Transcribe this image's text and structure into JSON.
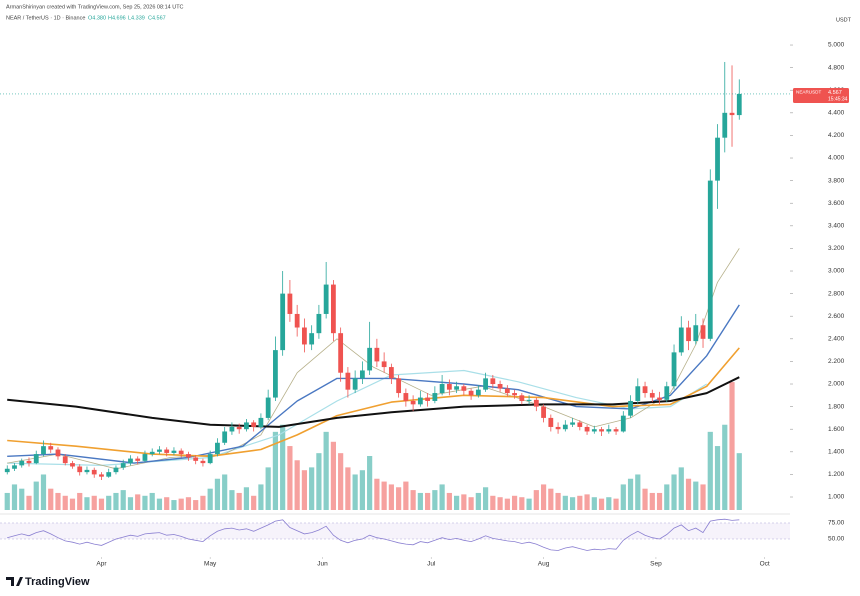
{
  "chart_data": {
    "type": "candlestick",
    "credit": "ArmanShirinyan created with TradingView.com, Sep 25, 2026 08:14 UTC",
    "title": "NEAR / TetherUS · 1D · Binance",
    "header_ohlc": [
      "O4.380",
      "H4.696",
      "L4.339",
      "C4.567"
    ],
    "y_unit": "USDT",
    "brand": "TradingView",
    "up_color": "#26a69a",
    "down_color": "#ef5350",
    "grid": false,
    "xlim": [
      "2026-03-04",
      "2026-10-08"
    ],
    "xticks": [
      {
        "value": "2026-04-01",
        "label": "Apr"
      },
      {
        "value": "2026-05-01",
        "label": "May"
      },
      {
        "value": "2026-06-01",
        "label": "Jun"
      },
      {
        "value": "2026-07-01",
        "label": "Jul"
      },
      {
        "value": "2026-08-01",
        "label": "Aug"
      },
      {
        "value": "2026-09-01",
        "label": "Sep"
      },
      {
        "value": "2026-10-01",
        "label": "Oct"
      }
    ],
    "ylim": [
      0.885,
      5.133
    ],
    "yticks": [
      {
        "value": 1,
        "label": "1.000"
      },
      {
        "value": 1.2,
        "label": "1.200"
      },
      {
        "value": 1.4,
        "label": "1.400"
      },
      {
        "value": 1.6,
        "label": "1.600"
      },
      {
        "value": 1.8,
        "label": "1.800"
      },
      {
        "value": 2,
        "label": "2.000"
      },
      {
        "value": 2.2,
        "label": "2.200"
      },
      {
        "value": 2.4,
        "label": "2.400"
      },
      {
        "value": 2.6,
        "label": "2.600"
      },
      {
        "value": 2.8,
        "label": "2.800"
      },
      {
        "value": 3,
        "label": "3.000"
      },
      {
        "value": 3.2,
        "label": "3.200"
      },
      {
        "value": 3.4,
        "label": "3.400"
      },
      {
        "value": 3.6,
        "label": "3.600"
      },
      {
        "value": 3.8,
        "label": "3.800"
      },
      {
        "value": 4,
        "label": "4.000"
      },
      {
        "value": 4.2,
        "label": "4.200"
      },
      {
        "value": 4.4,
        "label": "4.400"
      },
      {
        "value": 4.6,
        "label": "4.600"
      },
      {
        "value": 4.8,
        "label": "4.800"
      },
      {
        "value": 5,
        "label": "5.000"
      }
    ],
    "price_label": {
      "symbol": "NEARUSDT",
      "value": 4.567,
      "label": "4.567",
      "countdown": "15:45:34"
    },
    "x": [
      "2026-03-06",
      "2026-03-08",
      "2026-03-10",
      "2026-03-12",
      "2026-03-14",
      "2026-03-16",
      "2026-03-18",
      "2026-03-20",
      "2026-03-22",
      "2026-03-24",
      "2026-03-26",
      "2026-03-28",
      "2026-03-30",
      "2026-04-01",
      "2026-04-03",
      "2026-04-05",
      "2026-04-07",
      "2026-04-09",
      "2026-04-11",
      "2026-04-13",
      "2026-04-15",
      "2026-04-17",
      "2026-04-19",
      "2026-04-21",
      "2026-04-23",
      "2026-04-25",
      "2026-04-27",
      "2026-04-29",
      "2026-05-01",
      "2026-05-03",
      "2026-05-05",
      "2026-05-07",
      "2026-05-09",
      "2026-05-11",
      "2026-05-13",
      "2026-05-15",
      "2026-05-17",
      "2026-05-19",
      "2026-05-21",
      "2026-05-23",
      "2026-05-25",
      "2026-05-27",
      "2026-05-29",
      "2026-05-31",
      "2026-06-02",
      "2026-06-04",
      "2026-06-06",
      "2026-06-08",
      "2026-06-10",
      "2026-06-12",
      "2026-06-14",
      "2026-06-16",
      "2026-06-18",
      "2026-06-20",
      "2026-06-22",
      "2026-06-24",
      "2026-06-26",
      "2026-06-28",
      "2026-06-30",
      "2026-07-02",
      "2026-07-04",
      "2026-07-06",
      "2026-07-08",
      "2026-07-10",
      "2026-07-12",
      "2026-07-14",
      "2026-07-16",
      "2026-07-18",
      "2026-07-20",
      "2026-07-22",
      "2026-07-24",
      "2026-07-26",
      "2026-07-28",
      "2026-07-30",
      "2026-08-01",
      "2026-08-03",
      "2026-08-05",
      "2026-08-07",
      "2026-08-09",
      "2026-08-11",
      "2026-08-13",
      "2026-08-15",
      "2026-08-17",
      "2026-08-19",
      "2026-08-21",
      "2026-08-23",
      "2026-08-25",
      "2026-08-27",
      "2026-08-29",
      "2026-08-31",
      "2026-09-02",
      "2026-09-04",
      "2026-09-06",
      "2026-09-08",
      "2026-09-10",
      "2026-09-12",
      "2026-09-14",
      "2026-09-16",
      "2026-09-18",
      "2026-09-20",
      "2026-09-22",
      "2026-09-24"
    ],
    "ohlc": [
      [
        1.22,
        1.28,
        1.2,
        1.25
      ],
      [
        1.25,
        1.3,
        1.23,
        1.28
      ],
      [
        1.28,
        1.34,
        1.26,
        1.32
      ],
      [
        1.32,
        1.35,
        1.27,
        1.3
      ],
      [
        1.3,
        1.41,
        1.29,
        1.38
      ],
      [
        1.38,
        1.5,
        1.36,
        1.45
      ],
      [
        1.45,
        1.48,
        1.39,
        1.42
      ],
      [
        1.42,
        1.44,
        1.33,
        1.36
      ],
      [
        1.36,
        1.38,
        1.28,
        1.3
      ],
      [
        1.3,
        1.32,
        1.25,
        1.27
      ],
      [
        1.27,
        1.29,
        1.19,
        1.22
      ],
      [
        1.22,
        1.27,
        1.2,
        1.24
      ],
      [
        1.24,
        1.26,
        1.17,
        1.2
      ],
      [
        1.2,
        1.22,
        1.15,
        1.18
      ],
      [
        1.18,
        1.25,
        1.17,
        1.22
      ],
      [
        1.22,
        1.28,
        1.2,
        1.26
      ],
      [
        1.26,
        1.33,
        1.24,
        1.3
      ],
      [
        1.3,
        1.37,
        1.28,
        1.34
      ],
      [
        1.34,
        1.36,
        1.29,
        1.32
      ],
      [
        1.32,
        1.41,
        1.31,
        1.38
      ],
      [
        1.38,
        1.43,
        1.36,
        1.4
      ],
      [
        1.4,
        1.45,
        1.38,
        1.42
      ],
      [
        1.42,
        1.44,
        1.36,
        1.39
      ],
      [
        1.39,
        1.44,
        1.37,
        1.41
      ],
      [
        1.41,
        1.43,
        1.35,
        1.38
      ],
      [
        1.38,
        1.4,
        1.32,
        1.35
      ],
      [
        1.35,
        1.37,
        1.29,
        1.32
      ],
      [
        1.32,
        1.34,
        1.27,
        1.3
      ],
      [
        1.3,
        1.41,
        1.29,
        1.38
      ],
      [
        1.38,
        1.52,
        1.36,
        1.48
      ],
      [
        1.48,
        1.62,
        1.46,
        1.58
      ],
      [
        1.58,
        1.66,
        1.55,
        1.62
      ],
      [
        1.62,
        1.65,
        1.56,
        1.6
      ],
      [
        1.6,
        1.69,
        1.58,
        1.66
      ],
      [
        1.66,
        1.68,
        1.58,
        1.62
      ],
      [
        1.62,
        1.74,
        1.6,
        1.7
      ],
      [
        1.7,
        1.95,
        1.68,
        1.88
      ],
      [
        1.88,
        2.42,
        1.85,
        2.3
      ],
      [
        2.3,
        3.0,
        2.25,
        2.8
      ],
      [
        2.8,
        2.92,
        2.55,
        2.62
      ],
      [
        2.62,
        2.7,
        2.42,
        2.5
      ],
      [
        2.5,
        2.58,
        2.28,
        2.35
      ],
      [
        2.35,
        2.52,
        2.3,
        2.45
      ],
      [
        2.45,
        2.7,
        2.4,
        2.62
      ],
      [
        2.62,
        3.08,
        2.58,
        2.88
      ],
      [
        2.88,
        2.92,
        2.38,
        2.45
      ],
      [
        2.45,
        2.5,
        2.02,
        2.1
      ],
      [
        2.1,
        2.15,
        1.88,
        1.95
      ],
      [
        1.95,
        2.12,
        1.92,
        2.05
      ],
      [
        2.05,
        2.2,
        2.0,
        2.12
      ],
      [
        2.12,
        2.55,
        2.08,
        2.32
      ],
      [
        2.32,
        2.4,
        2.15,
        2.2
      ],
      [
        2.2,
        2.28,
        2.1,
        2.15
      ],
      [
        2.15,
        2.18,
        2.0,
        2.05
      ],
      [
        2.05,
        2.08,
        1.88,
        1.92
      ],
      [
        1.92,
        1.96,
        1.8,
        1.85
      ],
      [
        1.85,
        1.9,
        1.76,
        1.82
      ],
      [
        1.82,
        1.94,
        1.8,
        1.88
      ],
      [
        1.88,
        1.92,
        1.8,
        1.85
      ],
      [
        1.85,
        1.98,
        1.83,
        1.92
      ],
      [
        1.92,
        2.08,
        1.9,
        2.0
      ],
      [
        2.0,
        2.04,
        1.9,
        1.95
      ],
      [
        1.95,
        2.02,
        1.92,
        1.98
      ],
      [
        1.98,
        2.0,
        1.9,
        1.94
      ],
      [
        1.94,
        1.96,
        1.86,
        1.9
      ],
      [
        1.9,
        1.99,
        1.88,
        1.95
      ],
      [
        1.95,
        2.1,
        1.93,
        2.05
      ],
      [
        2.05,
        2.08,
        1.96,
        2.0
      ],
      [
        2.0,
        2.03,
        1.93,
        1.96
      ],
      [
        1.96,
        1.99,
        1.89,
        1.92
      ],
      [
        1.92,
        1.95,
        1.87,
        1.9
      ],
      [
        1.9,
        1.92,
        1.82,
        1.85
      ],
      [
        1.85,
        1.9,
        1.82,
        1.86
      ],
      [
        1.86,
        1.88,
        1.76,
        1.8
      ],
      [
        1.8,
        1.82,
        1.66,
        1.7
      ],
      [
        1.7,
        1.73,
        1.58,
        1.62
      ],
      [
        1.62,
        1.66,
        1.56,
        1.6
      ],
      [
        1.6,
        1.68,
        1.58,
        1.64
      ],
      [
        1.64,
        1.7,
        1.62,
        1.66
      ],
      [
        1.66,
        1.68,
        1.59,
        1.62
      ],
      [
        1.62,
        1.64,
        1.55,
        1.58
      ],
      [
        1.58,
        1.63,
        1.56,
        1.6
      ],
      [
        1.6,
        1.62,
        1.54,
        1.58
      ],
      [
        1.58,
        1.64,
        1.56,
        1.6
      ],
      [
        1.6,
        1.62,
        1.55,
        1.58
      ],
      [
        1.58,
        1.76,
        1.57,
        1.72
      ],
      [
        1.72,
        1.9,
        1.7,
        1.85
      ],
      [
        1.85,
        2.05,
        1.82,
        1.98
      ],
      [
        1.98,
        2.02,
        1.88,
        1.92
      ],
      [
        1.92,
        1.95,
        1.84,
        1.88
      ],
      [
        1.88,
        1.93,
        1.82,
        1.86
      ],
      [
        1.86,
        2.02,
        1.84,
        1.98
      ],
      [
        1.98,
        2.35,
        1.95,
        2.28
      ],
      [
        2.28,
        2.6,
        2.25,
        2.5
      ],
      [
        2.5,
        2.56,
        2.3,
        2.38
      ],
      [
        2.38,
        2.62,
        2.35,
        2.52
      ],
      [
        2.52,
        2.58,
        2.32,
        2.4
      ],
      [
        2.4,
        3.9,
        2.38,
        3.8
      ],
      [
        3.8,
        4.3,
        3.55,
        4.18
      ],
      [
        4.18,
        4.85,
        4.05,
        4.4
      ],
      [
        4.4,
        4.82,
        4.1,
        4.38
      ],
      [
        4.38,
        4.696,
        4.339,
        4.567
      ]
    ],
    "volume": {
      "vlim": [
        0,
        95
      ],
      "values": [
        12,
        18,
        15,
        10,
        20,
        25,
        15,
        12,
        10,
        8,
        12,
        9,
        10,
        8,
        10,
        12,
        14,
        9,
        11,
        10,
        12,
        8,
        9,
        7,
        8,
        9,
        7,
        10,
        15,
        22,
        25,
        14,
        12,
        16,
        10,
        18,
        30,
        55,
        60,
        45,
        35,
        28,
        30,
        40,
        55,
        48,
        40,
        30,
        25,
        28,
        38,
        22,
        20,
        18,
        16,
        20,
        14,
        12,
        12,
        14,
        18,
        12,
        10,
        11,
        9,
        12,
        16,
        10,
        9,
        8,
        10,
        9,
        8,
        14,
        18,
        15,
        12,
        10,
        9,
        10,
        11,
        9,
        8,
        9,
        8,
        18,
        22,
        25,
        15,
        12,
        12,
        18,
        25,
        30,
        22,
        20,
        18,
        55,
        45,
        60,
        90,
        40
      ]
    },
    "moving_averages": [
      {
        "color": "#a9dfe8",
        "width": 1.2,
        "x": [
          "2026-03-06",
          "2026-04-01",
          "2026-05-01",
          "2026-05-20",
          "2026-06-05",
          "2026-06-20",
          "2026-07-10",
          "2026-07-25",
          "2026-08-10",
          "2026-08-25",
          "2026-09-05",
          "2026-09-15"
        ],
        "values": [
          1.3,
          1.28,
          1.35,
          1.55,
          1.85,
          2.08,
          2.12,
          2.02,
          1.88,
          1.78,
          1.8,
          2.0
        ]
      },
      {
        "color": "#b6b08a",
        "width": 0.8,
        "x": [
          "2026-03-06",
          "2026-03-20",
          "2026-04-05",
          "2026-04-20",
          "2026-05-05",
          "2026-05-15",
          "2026-05-25",
          "2026-06-05",
          "2026-06-15",
          "2026-07-01",
          "2026-07-15",
          "2026-08-01",
          "2026-08-15",
          "2026-08-25",
          "2026-09-05",
          "2026-09-12",
          "2026-09-18",
          "2026-09-24"
        ],
        "values": [
          1.3,
          1.38,
          1.25,
          1.35,
          1.38,
          1.55,
          2.1,
          2.4,
          2.15,
          1.9,
          1.98,
          1.8,
          1.62,
          1.7,
          1.92,
          2.35,
          2.9,
          3.2
        ]
      },
      {
        "color": "#4a78c2",
        "width": 1.4,
        "x": [
          "2026-03-06",
          "2026-03-20",
          "2026-04-10",
          "2026-04-25",
          "2026-05-10",
          "2026-05-25",
          "2026-06-05",
          "2026-06-20",
          "2026-07-10",
          "2026-07-25",
          "2026-08-10",
          "2026-08-25",
          "2026-09-05",
          "2026-09-15",
          "2026-09-24"
        ],
        "values": [
          1.36,
          1.38,
          1.3,
          1.35,
          1.45,
          1.85,
          2.05,
          2.05,
          2.0,
          1.95,
          1.8,
          1.78,
          1.9,
          2.25,
          2.7
        ]
      },
      {
        "color": "#f0a030",
        "width": 1.6,
        "x": [
          "2026-03-06",
          "2026-03-25",
          "2026-04-15",
          "2026-05-01",
          "2026-05-15",
          "2026-05-25",
          "2026-06-05",
          "2026-06-20",
          "2026-07-10",
          "2026-08-01",
          "2026-08-20",
          "2026-09-05",
          "2026-09-15",
          "2026-09-24"
        ],
        "values": [
          1.5,
          1.45,
          1.38,
          1.36,
          1.42,
          1.55,
          1.72,
          1.84,
          1.9,
          1.88,
          1.8,
          1.82,
          1.98,
          2.32
        ]
      },
      {
        "color": "#111111",
        "width": 2,
        "x": [
          "2026-03-06",
          "2026-03-25",
          "2026-04-15",
          "2026-05-01",
          "2026-05-20",
          "2026-06-05",
          "2026-06-20",
          "2026-07-10",
          "2026-08-01",
          "2026-08-20",
          "2026-09-05",
          "2026-09-15",
          "2026-09-24"
        ],
        "values": [
          1.86,
          1.8,
          1.7,
          1.64,
          1.62,
          1.7,
          1.75,
          1.8,
          1.82,
          1.82,
          1.85,
          1.92,
          2.06
        ]
      }
    ],
    "rsi": {
      "color": "#8a7fd1",
      "ylim": [
        25,
        82.8
      ],
      "yticks": [
        {
          "value": 75,
          "label": "75.00"
        },
        {
          "value": 50,
          "label": "50.00"
        }
      ],
      "values": [
        52,
        55,
        58,
        55,
        60,
        63,
        58,
        52,
        47,
        45,
        42,
        45,
        42,
        40,
        45,
        50,
        53,
        56,
        54,
        58,
        59,
        60,
        56,
        57,
        54,
        50,
        48,
        46,
        55,
        62,
        66,
        67,
        64,
        66,
        62,
        67,
        72,
        78,
        80,
        68,
        63,
        58,
        60,
        64,
        70,
        56,
        48,
        44,
        48,
        50,
        56,
        52,
        50,
        47,
        44,
        42,
        41,
        46,
        44,
        48,
        52,
        49,
        51,
        48,
        46,
        50,
        55,
        51,
        49,
        47,
        46,
        43,
        45,
        42,
        37,
        33,
        32,
        36,
        38,
        35,
        32,
        34,
        33,
        35,
        34,
        48,
        56,
        62,
        56,
        52,
        50,
        57,
        67,
        72,
        63,
        67,
        60,
        78,
        80,
        81,
        79,
        80
      ]
    }
  }
}
